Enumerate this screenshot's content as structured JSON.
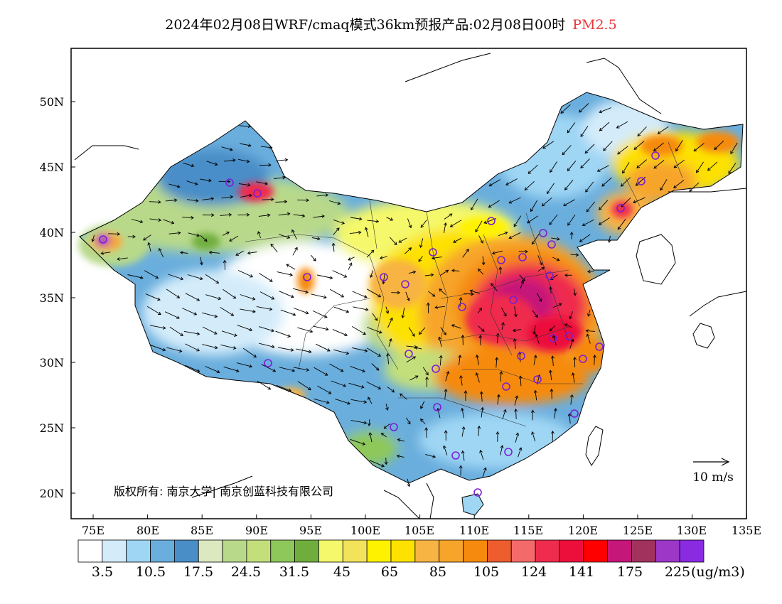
{
  "title": {
    "main": "2024年02月08日WRF/cmaq模式36km预报产品:02月08日00时",
    "variable": "PM2.5"
  },
  "map": {
    "lat_ticks": [
      "50N",
      "45N",
      "40N",
      "35N",
      "30N",
      "25N",
      "20N"
    ],
    "lon_ticks": [
      "75E",
      "80E",
      "85E",
      "90E",
      "95E",
      "100E",
      "105E",
      "110E",
      "115E",
      "120E",
      "125E",
      "130E",
      "135E"
    ],
    "lon_range": [
      73,
      135
    ],
    "lat_range": [
      18,
      54
    ],
    "copyright": "版权所有: 南京大学| 南京创蓝科技有限公司",
    "wind_reference": "10 m/s",
    "wind_arrow_color": "#000000",
    "station_marker_color": "#7b1fd4"
  },
  "colorbar": {
    "colors": [
      "#ffffff",
      "#d4ecfa",
      "#9fd6f4",
      "#6aaedd",
      "#4a8ec8",
      "#dce9c0",
      "#b8d98a",
      "#c2df7c",
      "#8ec85a",
      "#6fae3c",
      "#f4f86a",
      "#f2e35a",
      "#fff200",
      "#fde100",
      "#f8b443",
      "#f7a52a",
      "#f68a0f",
      "#ee5d2d",
      "#f46a6a",
      "#ef2b4e",
      "#ec0f3c",
      "#ff0000",
      "#c5167a",
      "#a1325e",
      "#9c37c7",
      "#8a2be2"
    ],
    "labels": [
      "3.5",
      "10.5",
      "17.5",
      "24.5",
      "31.5",
      "45",
      "65",
      "85",
      "105",
      "124",
      "141",
      "175",
      "225"
    ],
    "unit": "(ug/m3)"
  }
}
